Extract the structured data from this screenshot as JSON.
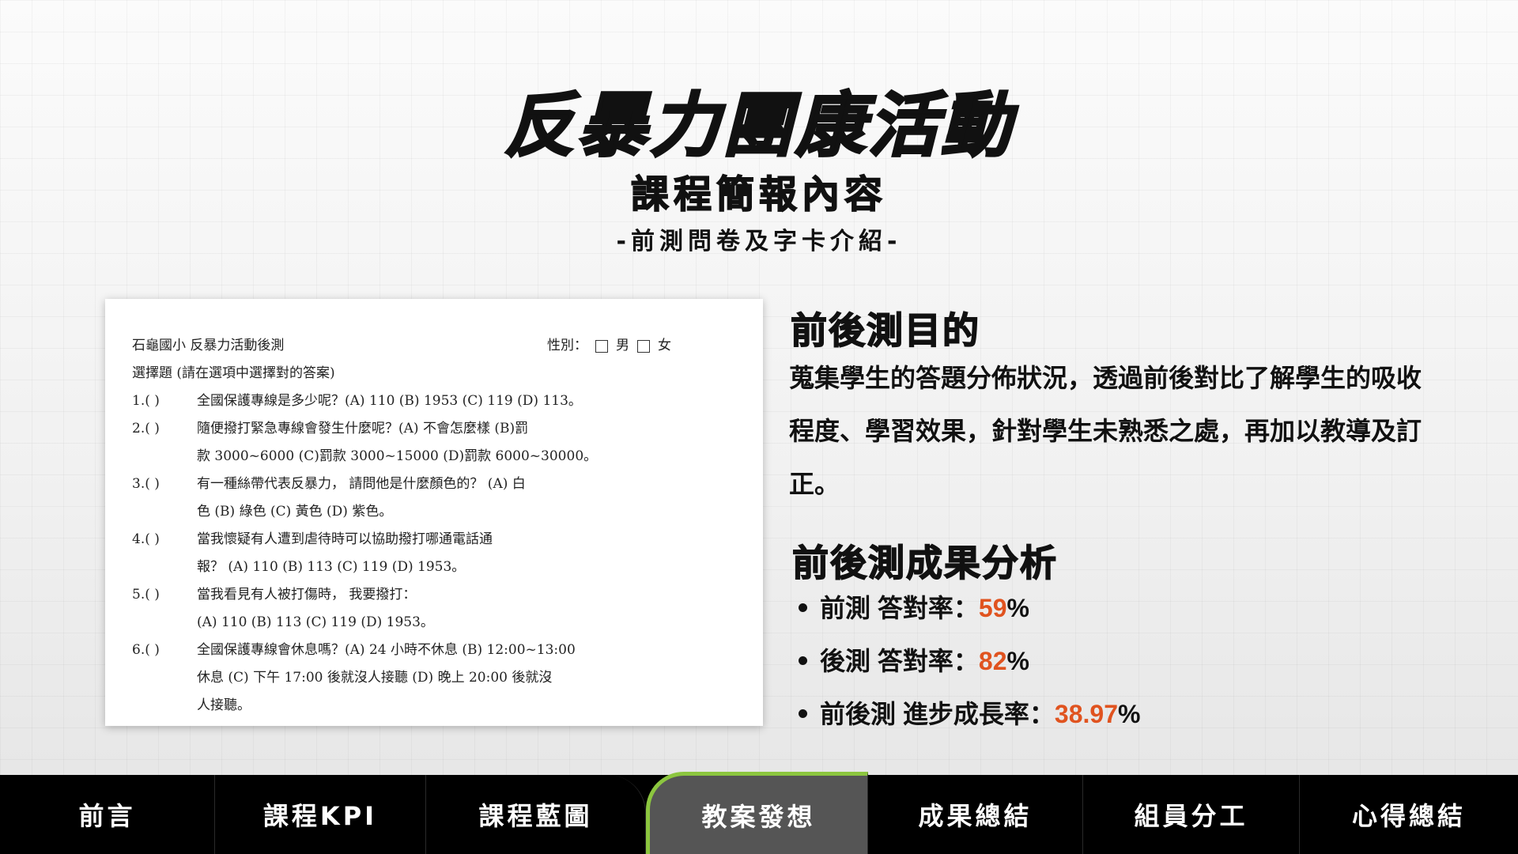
{
  "header": {
    "title": "反暴力團康活動",
    "subtitle": "課程簡報內容",
    "section": "-前測問卷及字卡介紹-"
  },
  "questionnaire": {
    "heading": "石龜國小 反暴力活動後測",
    "gender_label": "性別：",
    "gender_male": "男",
    "gender_female": "女",
    "instruction": "選擇題 (請在選項中選擇對的答案)",
    "lines": [
      {
        "num": "1.(    )",
        "text": "全國保護專線是多少呢？(A) 110 (B) 1953 (C) 119 (D) 113。"
      },
      {
        "num": "2.(    )",
        "text": "隨便撥打緊急專線會發生什麼呢？(A) 不會怎麼樣 (B)罰"
      },
      {
        "num": "",
        "text": "款 3000~6000 (C)罰款 3000~15000 (D)罰款 6000~30000。"
      },
      {
        "num": "3.(    )",
        "text": "有一種絲帶代表反暴力， 請問他是什麼顏色的？ (A) 白"
      },
      {
        "num": "",
        "text": "色 (B) 綠色 (C) 黃色 (D) 紫色。"
      },
      {
        "num": "4.(    )",
        "text": "當我懷疑有人遭到虐待時可以協助撥打哪通電話通"
      },
      {
        "num": "",
        "text": "報？ (A) 110 (B) 113 (C) 119 (D) 1953。"
      },
      {
        "num": "5.(    )",
        "text": "當我看見有人被打傷時， 我要撥打："
      },
      {
        "num": "",
        "text": "(A) 110 (B) 113 (C) 119 (D) 1953。"
      },
      {
        "num": "6.(    )",
        "text": "全國保護專線會休息嗎？(A) 24 小時不休息 (B) 12:00~13:00"
      },
      {
        "num": "",
        "text": "休息 (C) 下午 17:00 後就沒人接聽 (D) 晚上 20:00 後就沒"
      },
      {
        "num": "",
        "text": "人接聽。"
      }
    ]
  },
  "purpose": {
    "heading": "前後測目的",
    "body": "蒐集學生的答題分佈狀況，透過前後對比了解學生的吸收程度、學習效果，針對學生未熟悉之處，再加以教導及訂正。"
  },
  "results": {
    "heading": "前後測成果分析",
    "items": [
      {
        "label": "前測 答對率：",
        "value": "59",
        "unit": "%"
      },
      {
        "label": "後測 答對率：",
        "value": "82",
        "unit": "%"
      },
      {
        "label": "前後測 進步成長率：",
        "value": "38.97",
        "unit": "%"
      }
    ],
    "highlight_color": "#e0531f"
  },
  "nav": {
    "items": [
      "前言",
      "課程KPI",
      "課程藍圖",
      "教案發想",
      "成果總結",
      "組員分工",
      "心得總結"
    ],
    "active": "教案發想",
    "active_accent": "#8cc63f"
  }
}
